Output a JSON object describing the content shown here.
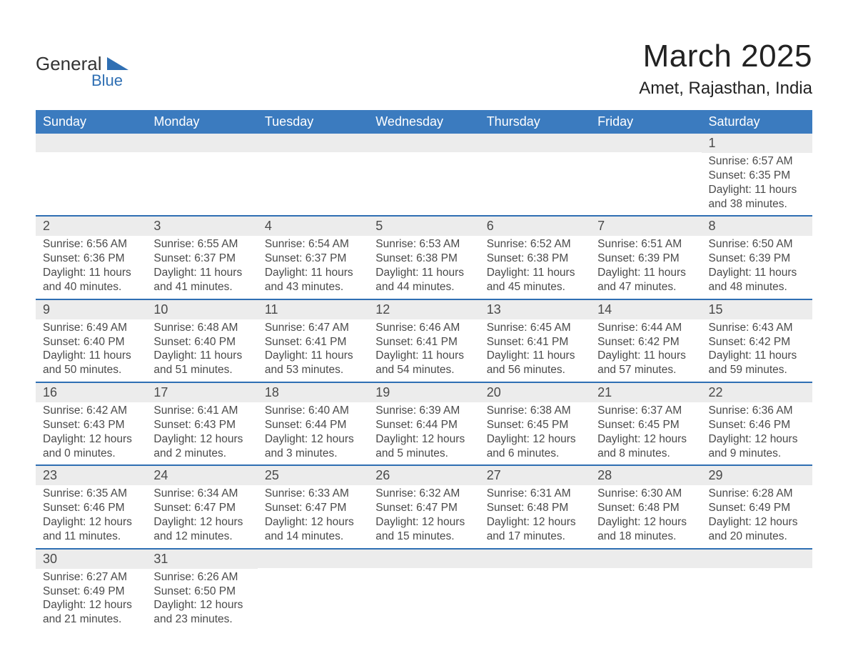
{
  "colors": {
    "header_blue": "#3b7bbf",
    "row_separator_blue": "#2f6fb3",
    "gray_band": "#ececec",
    "text_gray": "#4a4a4a",
    "title_dark": "#222222",
    "logo_blue": "#2f6fb3",
    "background": "#ffffff"
  },
  "typography": {
    "family": "Helvetica Neue, Arial, sans-serif",
    "title_size_pt": 33,
    "subtitle_size_pt": 18,
    "header_cell_size_pt": 14,
    "body_size_pt": 12
  },
  "logo": {
    "line1": "General",
    "line2": "Blue"
  },
  "title": "March 2025",
  "subtitle": "Amet, Rajasthan, India",
  "calendar": {
    "type": "table",
    "columns": [
      "Sunday",
      "Monday",
      "Tuesday",
      "Wednesday",
      "Thursday",
      "Friday",
      "Saturday"
    ],
    "weeks": [
      [
        {
          "day": "",
          "sunrise": "",
          "sunset": "",
          "daylight1": "",
          "daylight2": ""
        },
        {
          "day": "",
          "sunrise": "",
          "sunset": "",
          "daylight1": "",
          "daylight2": ""
        },
        {
          "day": "",
          "sunrise": "",
          "sunset": "",
          "daylight1": "",
          "daylight2": ""
        },
        {
          "day": "",
          "sunrise": "",
          "sunset": "",
          "daylight1": "",
          "daylight2": ""
        },
        {
          "day": "",
          "sunrise": "",
          "sunset": "",
          "daylight1": "",
          "daylight2": ""
        },
        {
          "day": "",
          "sunrise": "",
          "sunset": "",
          "daylight1": "",
          "daylight2": ""
        },
        {
          "day": "1",
          "sunrise": "Sunrise: 6:57 AM",
          "sunset": "Sunset: 6:35 PM",
          "daylight1": "Daylight: 11 hours",
          "daylight2": "and 38 minutes."
        }
      ],
      [
        {
          "day": "2",
          "sunrise": "Sunrise: 6:56 AM",
          "sunset": "Sunset: 6:36 PM",
          "daylight1": "Daylight: 11 hours",
          "daylight2": "and 40 minutes."
        },
        {
          "day": "3",
          "sunrise": "Sunrise: 6:55 AM",
          "sunset": "Sunset: 6:37 PM",
          "daylight1": "Daylight: 11 hours",
          "daylight2": "and 41 minutes."
        },
        {
          "day": "4",
          "sunrise": "Sunrise: 6:54 AM",
          "sunset": "Sunset: 6:37 PM",
          "daylight1": "Daylight: 11 hours",
          "daylight2": "and 43 minutes."
        },
        {
          "day": "5",
          "sunrise": "Sunrise: 6:53 AM",
          "sunset": "Sunset: 6:38 PM",
          "daylight1": "Daylight: 11 hours",
          "daylight2": "and 44 minutes."
        },
        {
          "day": "6",
          "sunrise": "Sunrise: 6:52 AM",
          "sunset": "Sunset: 6:38 PM",
          "daylight1": "Daylight: 11 hours",
          "daylight2": "and 45 minutes."
        },
        {
          "day": "7",
          "sunrise": "Sunrise: 6:51 AM",
          "sunset": "Sunset: 6:39 PM",
          "daylight1": "Daylight: 11 hours",
          "daylight2": "and 47 minutes."
        },
        {
          "day": "8",
          "sunrise": "Sunrise: 6:50 AM",
          "sunset": "Sunset: 6:39 PM",
          "daylight1": "Daylight: 11 hours",
          "daylight2": "and 48 minutes."
        }
      ],
      [
        {
          "day": "9",
          "sunrise": "Sunrise: 6:49 AM",
          "sunset": "Sunset: 6:40 PM",
          "daylight1": "Daylight: 11 hours",
          "daylight2": "and 50 minutes."
        },
        {
          "day": "10",
          "sunrise": "Sunrise: 6:48 AM",
          "sunset": "Sunset: 6:40 PM",
          "daylight1": "Daylight: 11 hours",
          "daylight2": "and 51 minutes."
        },
        {
          "day": "11",
          "sunrise": "Sunrise: 6:47 AM",
          "sunset": "Sunset: 6:41 PM",
          "daylight1": "Daylight: 11 hours",
          "daylight2": "and 53 minutes."
        },
        {
          "day": "12",
          "sunrise": "Sunrise: 6:46 AM",
          "sunset": "Sunset: 6:41 PM",
          "daylight1": "Daylight: 11 hours",
          "daylight2": "and 54 minutes."
        },
        {
          "day": "13",
          "sunrise": "Sunrise: 6:45 AM",
          "sunset": "Sunset: 6:41 PM",
          "daylight1": "Daylight: 11 hours",
          "daylight2": "and 56 minutes."
        },
        {
          "day": "14",
          "sunrise": "Sunrise: 6:44 AM",
          "sunset": "Sunset: 6:42 PM",
          "daylight1": "Daylight: 11 hours",
          "daylight2": "and 57 minutes."
        },
        {
          "day": "15",
          "sunrise": "Sunrise: 6:43 AM",
          "sunset": "Sunset: 6:42 PM",
          "daylight1": "Daylight: 11 hours",
          "daylight2": "and 59 minutes."
        }
      ],
      [
        {
          "day": "16",
          "sunrise": "Sunrise: 6:42 AM",
          "sunset": "Sunset: 6:43 PM",
          "daylight1": "Daylight: 12 hours",
          "daylight2": "and 0 minutes."
        },
        {
          "day": "17",
          "sunrise": "Sunrise: 6:41 AM",
          "sunset": "Sunset: 6:43 PM",
          "daylight1": "Daylight: 12 hours",
          "daylight2": "and 2 minutes."
        },
        {
          "day": "18",
          "sunrise": "Sunrise: 6:40 AM",
          "sunset": "Sunset: 6:44 PM",
          "daylight1": "Daylight: 12 hours",
          "daylight2": "and 3 minutes."
        },
        {
          "day": "19",
          "sunrise": "Sunrise: 6:39 AM",
          "sunset": "Sunset: 6:44 PM",
          "daylight1": "Daylight: 12 hours",
          "daylight2": "and 5 minutes."
        },
        {
          "day": "20",
          "sunrise": "Sunrise: 6:38 AM",
          "sunset": "Sunset: 6:45 PM",
          "daylight1": "Daylight: 12 hours",
          "daylight2": "and 6 minutes."
        },
        {
          "day": "21",
          "sunrise": "Sunrise: 6:37 AM",
          "sunset": "Sunset: 6:45 PM",
          "daylight1": "Daylight: 12 hours",
          "daylight2": "and 8 minutes."
        },
        {
          "day": "22",
          "sunrise": "Sunrise: 6:36 AM",
          "sunset": "Sunset: 6:46 PM",
          "daylight1": "Daylight: 12 hours",
          "daylight2": "and 9 minutes."
        }
      ],
      [
        {
          "day": "23",
          "sunrise": "Sunrise: 6:35 AM",
          "sunset": "Sunset: 6:46 PM",
          "daylight1": "Daylight: 12 hours",
          "daylight2": "and 11 minutes."
        },
        {
          "day": "24",
          "sunrise": "Sunrise: 6:34 AM",
          "sunset": "Sunset: 6:47 PM",
          "daylight1": "Daylight: 12 hours",
          "daylight2": "and 12 minutes."
        },
        {
          "day": "25",
          "sunrise": "Sunrise: 6:33 AM",
          "sunset": "Sunset: 6:47 PM",
          "daylight1": "Daylight: 12 hours",
          "daylight2": "and 14 minutes."
        },
        {
          "day": "26",
          "sunrise": "Sunrise: 6:32 AM",
          "sunset": "Sunset: 6:47 PM",
          "daylight1": "Daylight: 12 hours",
          "daylight2": "and 15 minutes."
        },
        {
          "day": "27",
          "sunrise": "Sunrise: 6:31 AM",
          "sunset": "Sunset: 6:48 PM",
          "daylight1": "Daylight: 12 hours",
          "daylight2": "and 17 minutes."
        },
        {
          "day": "28",
          "sunrise": "Sunrise: 6:30 AM",
          "sunset": "Sunset: 6:48 PM",
          "daylight1": "Daylight: 12 hours",
          "daylight2": "and 18 minutes."
        },
        {
          "day": "29",
          "sunrise": "Sunrise: 6:28 AM",
          "sunset": "Sunset: 6:49 PM",
          "daylight1": "Daylight: 12 hours",
          "daylight2": "and 20 minutes."
        }
      ],
      [
        {
          "day": "30",
          "sunrise": "Sunrise: 6:27 AM",
          "sunset": "Sunset: 6:49 PM",
          "daylight1": "Daylight: 12 hours",
          "daylight2": "and 21 minutes."
        },
        {
          "day": "31",
          "sunrise": "Sunrise: 6:26 AM",
          "sunset": "Sunset: 6:50 PM",
          "daylight1": "Daylight: 12 hours",
          "daylight2": "and 23 minutes."
        },
        {
          "day": "",
          "sunrise": "",
          "sunset": "",
          "daylight1": "",
          "daylight2": ""
        },
        {
          "day": "",
          "sunrise": "",
          "sunset": "",
          "daylight1": "",
          "daylight2": ""
        },
        {
          "day": "",
          "sunrise": "",
          "sunset": "",
          "daylight1": "",
          "daylight2": ""
        },
        {
          "day": "",
          "sunrise": "",
          "sunset": "",
          "daylight1": "",
          "daylight2": ""
        },
        {
          "day": "",
          "sunrise": "",
          "sunset": "",
          "daylight1": "",
          "daylight2": ""
        }
      ]
    ]
  }
}
